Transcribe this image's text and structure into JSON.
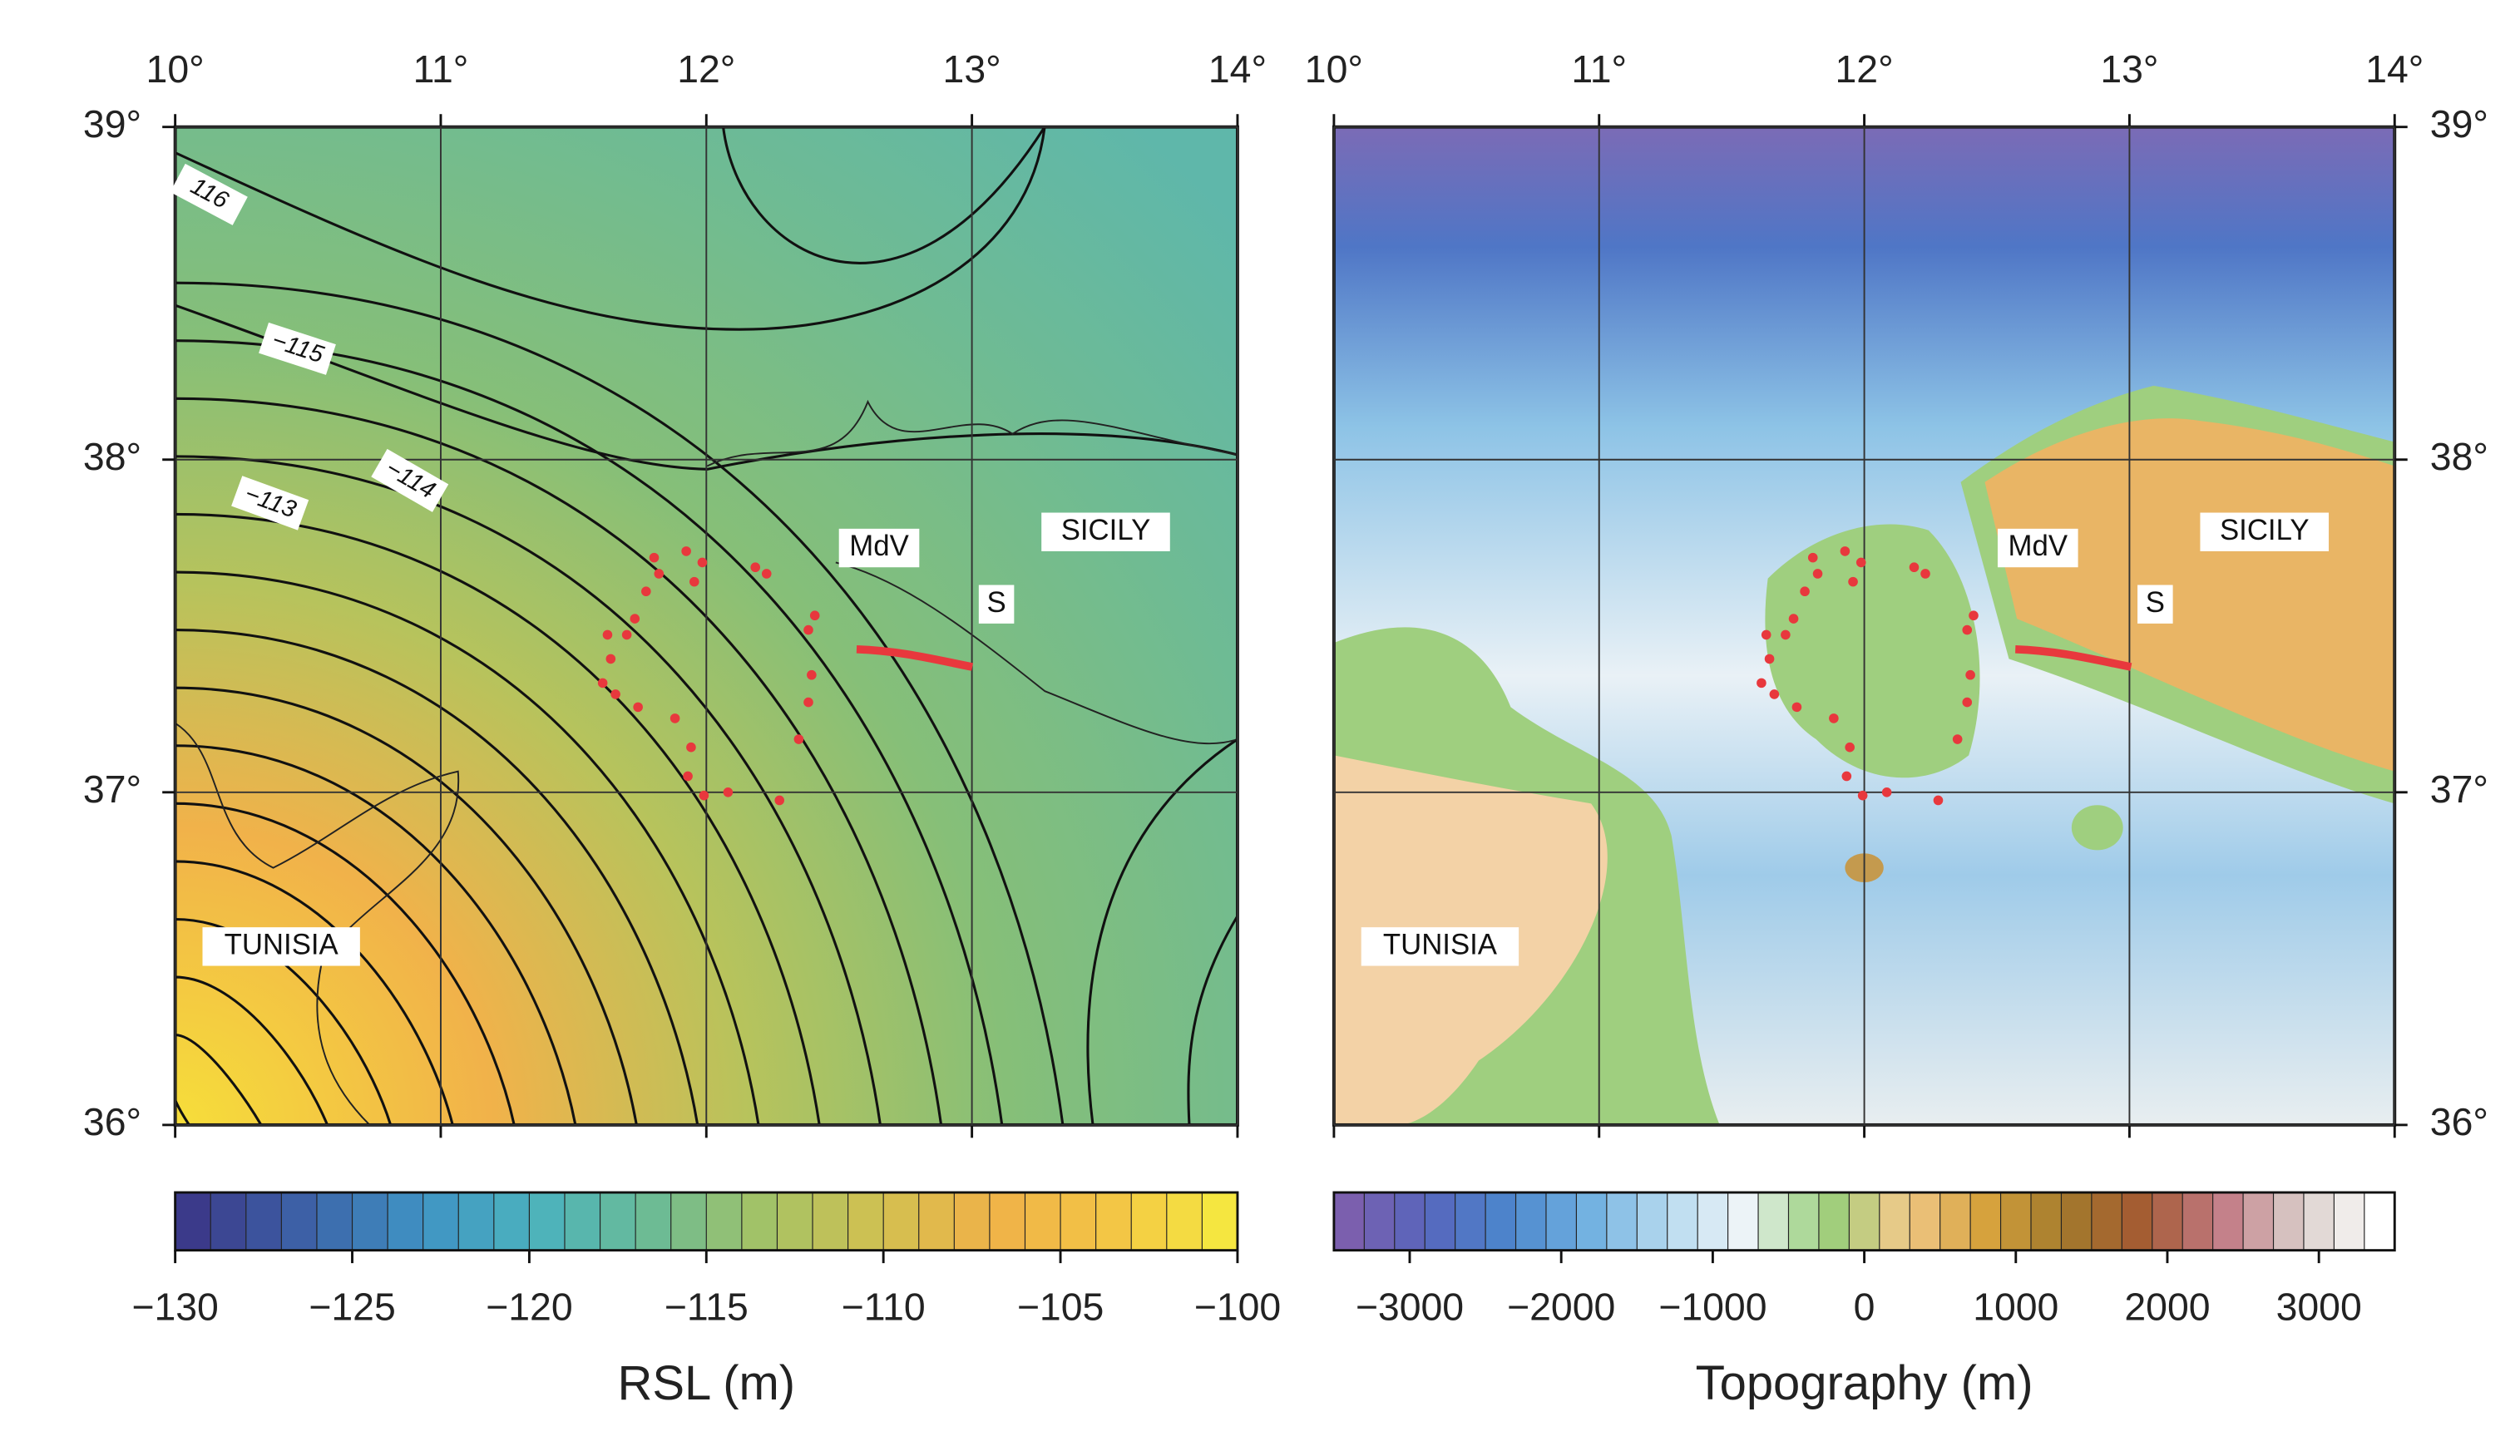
{
  "left_map": {
    "lon_labels": [
      "10°",
      "11°",
      "12°",
      "13°",
      "14°"
    ],
    "lat_labels": [
      "39°",
      "38°",
      "37°",
      "36°"
    ],
    "contour_labels": [
      "116",
      "−115",
      "−114",
      "−113"
    ],
    "places": {
      "mdv": "MdV",
      "sicily": "SICILY",
      "s": "S",
      "tunisia": "TUNISIA"
    },
    "colorbar": {
      "labels": [
        "−130",
        "−125",
        "−120",
        "−115",
        "−110",
        "−105",
        "−100"
      ],
      "title": "RSL (m)"
    }
  },
  "right_map": {
    "lon_labels": [
      "10°",
      "11°",
      "12°",
      "13°",
      "14°"
    ],
    "lat_labels": [
      "39°",
      "38°",
      "37°",
      "36°"
    ],
    "places": {
      "mdv": "MdV",
      "sicily": "SICILY",
      "s": "S",
      "tunisia": "TUNISIA"
    },
    "colorbar": {
      "labels": [
        "−3000",
        "−2000",
        "−1000",
        "0",
        "1000",
        "2000",
        "3000"
      ],
      "title": "Topography (m)"
    }
  }
}
